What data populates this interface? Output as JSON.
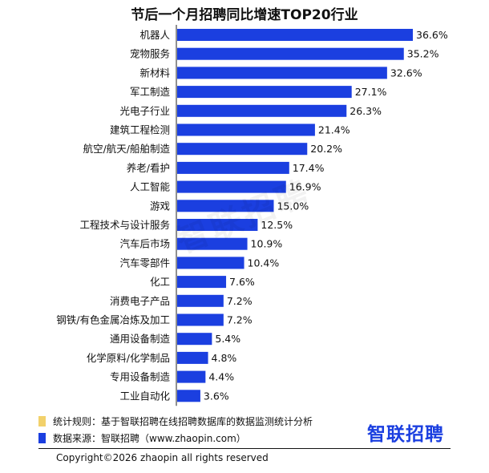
{
  "title": "节后一个月招聘同比增速TOP20行业",
  "chart_data": {
    "type": "bar",
    "orientation": "horizontal",
    "title": "节后一个月招聘同比增速TOP20行业",
    "categories": [
      "机器人",
      "宠物服务",
      "新材料",
      "军工制造",
      "光电子行业",
      "建筑工程检测",
      "航空/航天/船舶制造",
      "养老/看护",
      "人工智能",
      "游戏",
      "工程技术与设计服务",
      "汽车后市场",
      "汽车零部件",
      "化工",
      "消费电子产品",
      "钢铁/有色金属冶炼及加工",
      "通用设备制造",
      "化学原料/化学制品",
      "专用设备制造",
      "工业自动化"
    ],
    "values": [
      36.6,
      35.2,
      32.6,
      27.1,
      26.3,
      21.4,
      20.2,
      17.4,
      16.9,
      15.0,
      12.5,
      10.9,
      10.4,
      7.6,
      7.2,
      7.2,
      5.4,
      4.8,
      4.4,
      3.6
    ],
    "value_labels": [
      "36.6%",
      "35.2%",
      "32.6%",
      "27.1%",
      "26.3%",
      "21.4%",
      "20.2%",
      "17.4%",
      "16.9%",
      "15.0%",
      "12.5%",
      "10.9%",
      "10.4%",
      "7.6%",
      "7.2%",
      "7.2%",
      "5.4%",
      "4.8%",
      "4.4%",
      "3.6%"
    ],
    "unit": "%",
    "xlim": [
      0,
      40
    ],
    "bar_color": "#1b3fe0"
  },
  "watermark": "智联招聘",
  "notes": [
    {
      "marker_color": "#f2d16b",
      "text": "统计规则：基于智联招聘在线招聘数据库的数据监测统计分析"
    },
    {
      "marker_color": "#1b3fe0",
      "text": "数据来源：智联招聘（www.zhaopin.com）"
    }
  ],
  "brand": "智联招聘",
  "copyright": "Copyright©2026 zhaopin all rights reserved"
}
